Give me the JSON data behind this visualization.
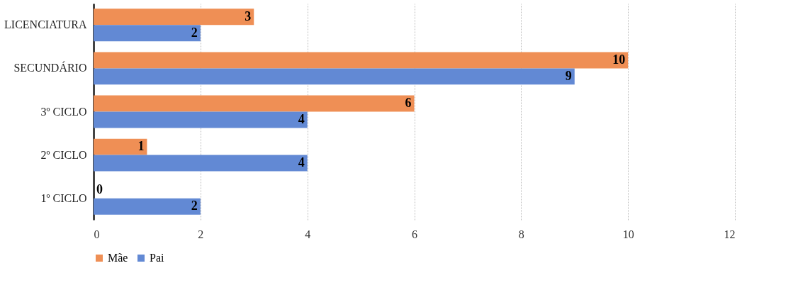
{
  "chart_data": {
    "type": "bar",
    "orientation": "horizontal",
    "categories": [
      "LICENCIATURA",
      "SECUNDÁRIO",
      "3º CICLO",
      "2º CICLO",
      "1º CICLO"
    ],
    "series": [
      {
        "name": "Mãe",
        "color": "#ef8f55",
        "values": [
          3,
          10,
          6,
          1,
          0
        ]
      },
      {
        "name": "Pai",
        "color": "#6289d4",
        "values": [
          2,
          9,
          4,
          4,
          2
        ]
      }
    ],
    "xlim": [
      0,
      12
    ],
    "xticks": [
      0,
      2,
      4,
      6,
      8,
      10,
      12
    ],
    "grid": "x",
    "legend": "bottom",
    "data_labels": true
  }
}
